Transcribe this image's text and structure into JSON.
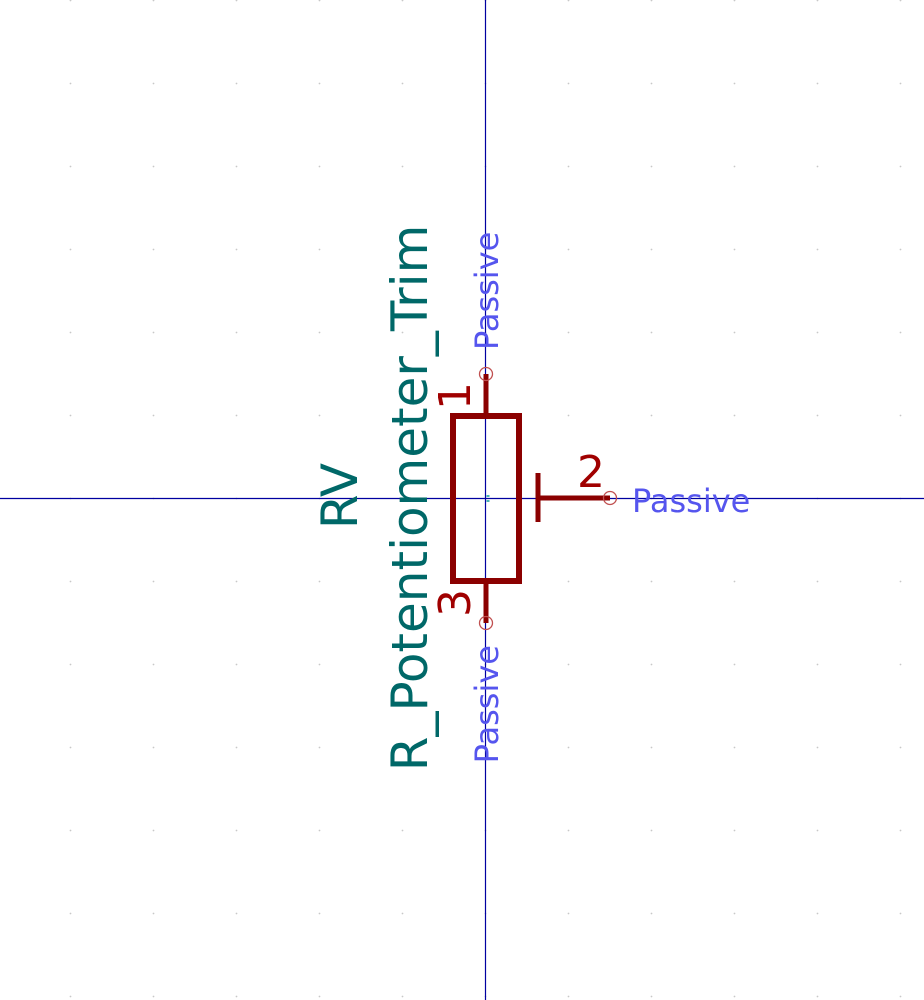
{
  "symbol": {
    "reference": "RV",
    "value": "R_Potentiometer_Trim"
  },
  "pins": [
    {
      "number": "1",
      "electrical_type": "Passive"
    },
    {
      "number": "2",
      "electrical_type": "Passive"
    },
    {
      "number": "3",
      "electrical_type": "Passive"
    }
  ],
  "colors": {
    "background": "#ffffff",
    "axis": "#0000a0",
    "body": "#8b0000",
    "pin_number": "#a00000",
    "pin_type": "#5555ee",
    "field_text": "#006868",
    "grid_dot": "#c8c8c8",
    "anchor": "#49b4b4"
  }
}
